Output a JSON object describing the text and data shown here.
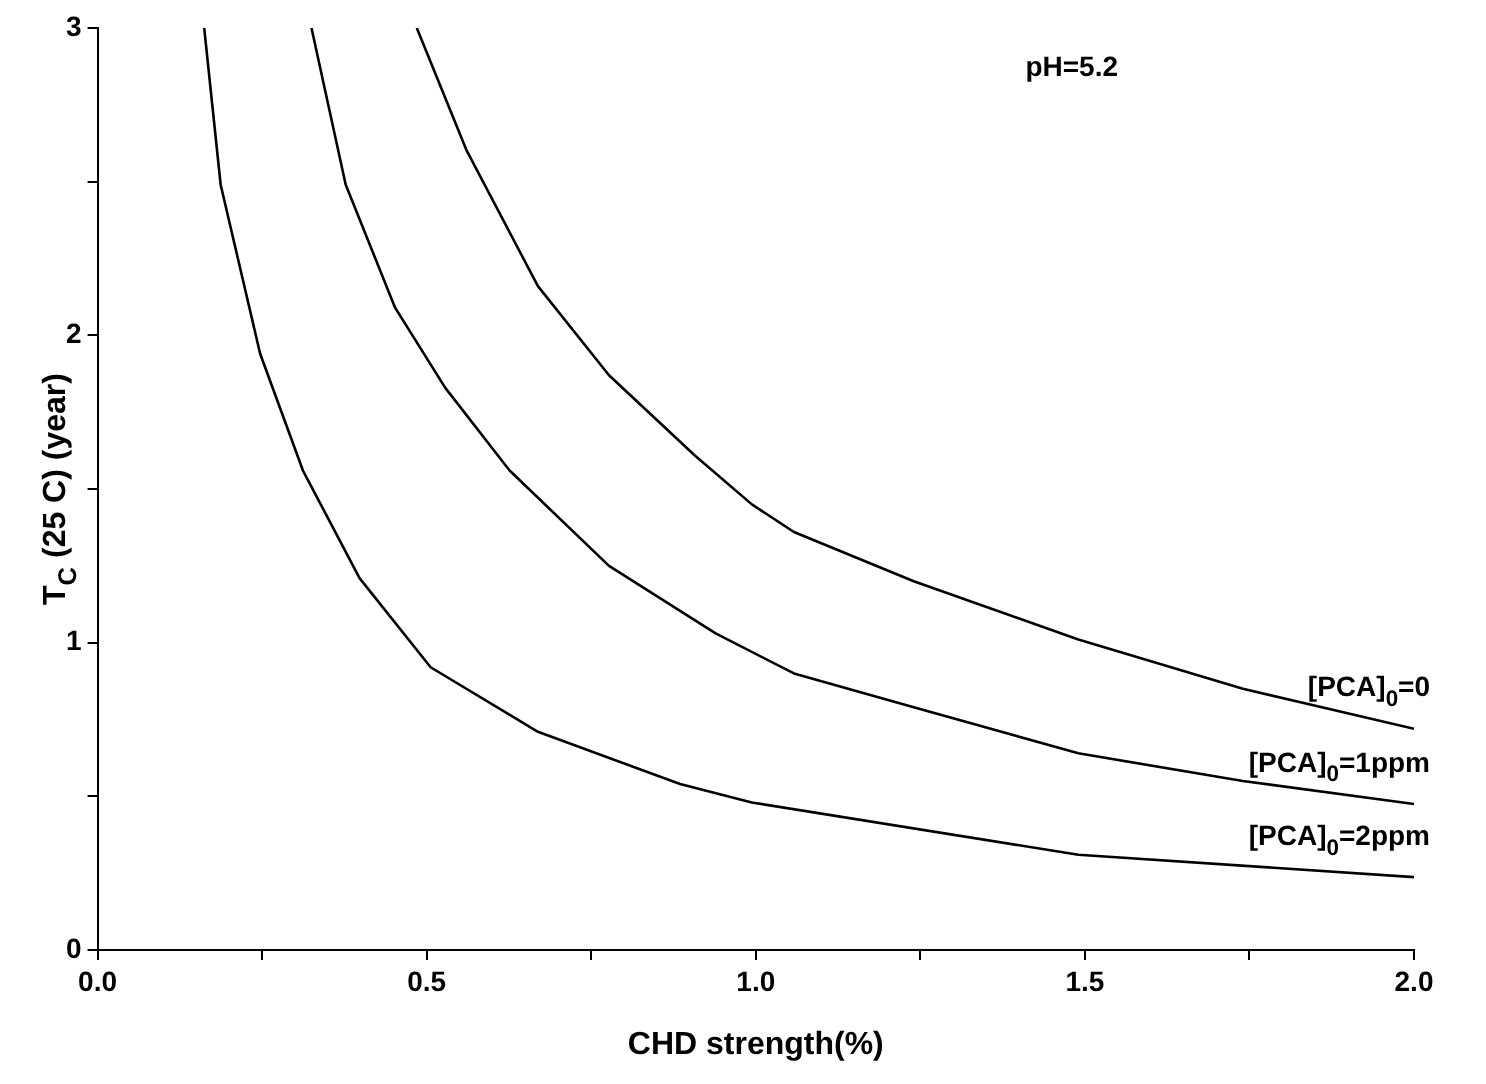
{
  "chart_data": {
    "type": "line",
    "xlabel": "CHD strength(%)",
    "ylabel": "T$_{C}$ (25 C) (year)",
    "annotations": [
      "pH=5.2"
    ],
    "xlim": [
      0,
      2
    ],
    "ylim": [
      0,
      3
    ],
    "xticks": [
      {
        "value": 0,
        "label": "0.0"
      },
      {
        "value": 0.25,
        "label": null
      },
      {
        "value": 0.5,
        "label": "0.5"
      },
      {
        "value": 0.75,
        "label": null
      },
      {
        "value": 1,
        "label": "1.0"
      },
      {
        "value": 1.25,
        "label": null
      },
      {
        "value": 1.5,
        "label": "1.5"
      },
      {
        "value": 1.75,
        "label": null
      },
      {
        "value": 2,
        "label": "2.0"
      }
    ],
    "yticks": [
      0,
      {
        "value": 0.5,
        "label": null
      },
      1,
      {
        "value": 1.5,
        "label": null
      },
      2,
      {
        "value": 2.5,
        "label": null
      },
      3
    ],
    "grid": false,
    "legend": false,
    "marker": "none",
    "line_style": "solid",
    "series": [
      {
        "name": "[PCA]$_{0}$=0",
        "color": "#000000",
        "x": [
          0.485,
          0.561,
          0.669,
          0.777,
          0.907,
          0.994,
          1.058,
          1.24,
          1.49,
          1.74,
          2.0
        ],
        "values": [
          3,
          2.6,
          2.16,
          1.87,
          1.61,
          1.45,
          1.36,
          1.2,
          1.01,
          0.85,
          0.72
        ]
      },
      {
        "name": "[PCA]$_{0}$=1ppm",
        "color": "#000000",
        "x": [
          0.325,
          0.377,
          0.452,
          0.528,
          0.626,
          0.777,
          0.939,
          1.058,
          1.24,
          1.49,
          1.74,
          2.0
        ],
        "values": [
          3,
          2.49,
          2.09,
          1.83,
          1.56,
          1.25,
          1.03,
          0.9,
          0.79,
          0.64,
          0.55,
          0.475
        ]
      },
      {
        "name": "[PCA]$_{0}$=2ppm",
        "color": "#000000",
        "x": [
          0.162,
          0.187,
          0.247,
          0.312,
          0.398,
          0.506,
          0.669,
          0.885,
          0.994,
          1.49,
          2.0
        ],
        "values": [
          3,
          2.49,
          1.94,
          1.56,
          1.21,
          0.92,
          0.71,
          0.54,
          0.48,
          0.31,
          0.237
        ]
      }
    ]
  }
}
